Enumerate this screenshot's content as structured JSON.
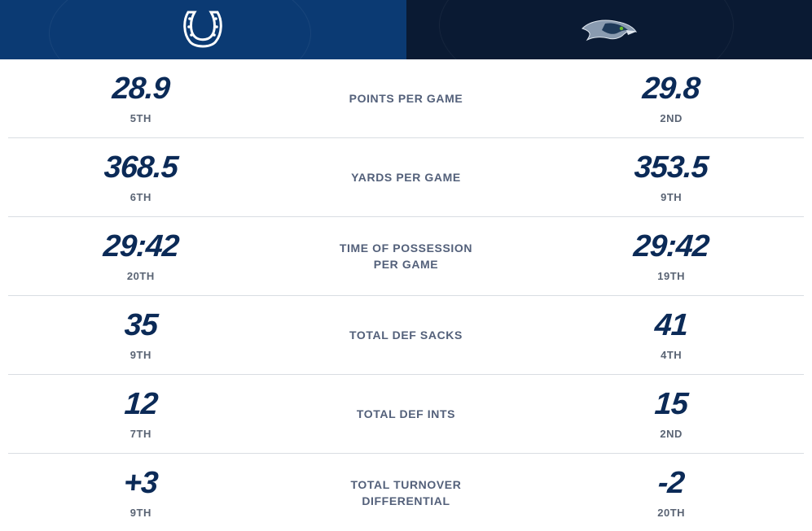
{
  "teams": {
    "left": {
      "name": "Indianapolis Colts",
      "logo_icon": "horseshoe-icon",
      "bg_color": "#0b3a73"
    },
    "right": {
      "name": "Seattle Seahawks",
      "logo_icon": "seahawk-icon",
      "bg_color": "#0a1a33"
    }
  },
  "colors": {
    "value": "#0b2a57",
    "rank": "#5a6474",
    "label": "#53607a"
  },
  "stats": [
    {
      "label": "POINTS PER GAME",
      "left_value": "28.9",
      "left_rank": "5TH",
      "right_value": "29.8",
      "right_rank": "2ND"
    },
    {
      "label": "YARDS PER GAME",
      "left_value": "368.5",
      "left_rank": "6TH",
      "right_value": "353.5",
      "right_rank": "9TH"
    },
    {
      "label": "TIME OF POSSESSION PER GAME",
      "left_value": "29:42",
      "left_rank": "20TH",
      "right_value": "29:42",
      "right_rank": "19TH"
    },
    {
      "label": "TOTAL DEF SACKS",
      "left_value": "35",
      "left_rank": "9TH",
      "right_value": "41",
      "right_rank": "4TH"
    },
    {
      "label": "TOTAL DEF INTS",
      "left_value": "12",
      "left_rank": "7TH",
      "right_value": "15",
      "right_rank": "2ND"
    },
    {
      "label": "TOTAL TURNOVER DIFFERENTIAL",
      "left_value": "+3",
      "left_rank": "9TH",
      "right_value": "-2",
      "right_rank": "20TH"
    }
  ]
}
